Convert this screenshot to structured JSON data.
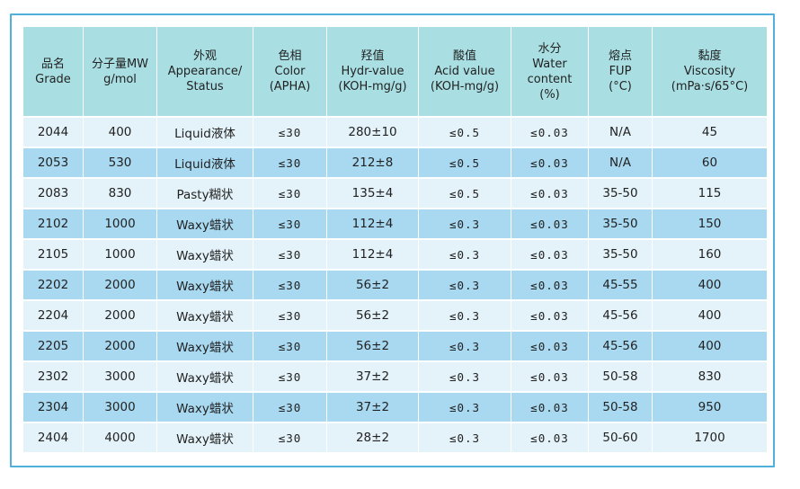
{
  "table": {
    "columns": [
      {
        "lines": [
          "品名",
          "Grade"
        ]
      },
      {
        "lines": [
          "分子量MW",
          "g/mol"
        ]
      },
      {
        "lines": [
          "外观",
          "Appearance/",
          "Status"
        ]
      },
      {
        "lines": [
          "色相",
          "Color",
          "(APHA)"
        ]
      },
      {
        "lines": [
          "羟值",
          "Hydr-value",
          "(KOH-mg/g)"
        ]
      },
      {
        "lines": [
          "酸值",
          "Acid value",
          "(KOH-mg/g)"
        ]
      },
      {
        "lines": [
          "水分",
          "Water",
          "content",
          "(%)"
        ]
      },
      {
        "lines": [
          "熔点",
          "FUP",
          "(°C)"
        ]
      },
      {
        "lines": [
          "黏度",
          "Viscosity",
          "(mPa·s/65°C)"
        ]
      }
    ],
    "rows": [
      [
        "2044",
        "400",
        "Liquid液体",
        "≤30",
        "280±10",
        "≤0.5",
        "≤0.03",
        "N/A",
        "45"
      ],
      [
        "2053",
        "530",
        "Liquid液体",
        "≤30",
        "212±8",
        "≤0.5",
        "≤0.03",
        "N/A",
        "60"
      ],
      [
        "2083",
        "830",
        "Pasty糊状",
        "≤30",
        "135±4",
        "≤0.5",
        "≤0.03",
        "35-50",
        "115"
      ],
      [
        "2102",
        "1000",
        "Waxy蜡状",
        "≤30",
        "112±4",
        "≤0.3",
        "≤0.03",
        "35-50",
        "150"
      ],
      [
        "2105",
        "1000",
        "Waxy蜡状",
        "≤30",
        "112±4",
        "≤0.3",
        "≤0.03",
        "35-50",
        "160"
      ],
      [
        "2202",
        "2000",
        "Waxy蜡状",
        "≤30",
        "56±2",
        "≤0.3",
        "≤0.03",
        "45-55",
        "400"
      ],
      [
        "2204",
        "2000",
        "Waxy蜡状",
        "≤30",
        "56±2",
        "≤0.3",
        "≤0.03",
        "45-56",
        "400"
      ],
      [
        "2205",
        "2000",
        "Waxy蜡状",
        "≤30",
        "56±2",
        "≤0.3",
        "≤0.03",
        "45-56",
        "400"
      ],
      [
        "2302",
        "3000",
        "Waxy蜡状",
        "≤30",
        "37±2",
        "≤0.3",
        "≤0.03",
        "50-58",
        "830"
      ],
      [
        "2304",
        "3000",
        "Waxy蜡状",
        "≤30",
        "37±2",
        "≤0.3",
        "≤0.03",
        "50-58",
        "950"
      ],
      [
        "2404",
        "4000",
        "Waxy蜡状",
        "≤30",
        "28±2",
        "≤0.3",
        "≤0.03",
        "50-60",
        "1700"
      ]
    ]
  },
  "colors": {
    "frame_border": "#4fb0dc",
    "header_bg": "#a9dfe3",
    "row_light": "#e4f3fa",
    "row_dark": "#a8d9f1"
  }
}
